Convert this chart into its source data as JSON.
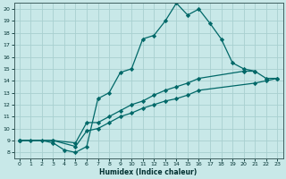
{
  "xlabel": "Humidex (Indice chaleur)",
  "bg_color": "#c8e8e8",
  "grid_color": "#a8d0d0",
  "line_color": "#006868",
  "xlim": [
    -0.5,
    23.5
  ],
  "ylim": [
    7.5,
    20.5
  ],
  "yticks": [
    8,
    9,
    10,
    11,
    12,
    13,
    14,
    15,
    16,
    17,
    18,
    19,
    20
  ],
  "xticks": [
    0,
    1,
    2,
    3,
    4,
    5,
    6,
    7,
    8,
    9,
    10,
    11,
    12,
    13,
    14,
    15,
    16,
    17,
    18,
    19,
    20,
    21,
    22,
    23
  ],
  "line1_x": [
    0,
    1,
    2,
    3,
    4,
    5,
    6,
    7,
    8,
    9,
    10,
    11,
    12,
    13,
    14,
    15,
    16,
    17,
    18,
    19,
    20,
    21
  ],
  "line1_y": [
    9,
    9,
    9,
    8.8,
    8.2,
    8.0,
    8.5,
    12.5,
    13.0,
    14.7,
    15.0,
    17.5,
    17.8,
    19.0,
    20.5,
    19.5,
    20.0,
    18.8,
    17.5,
    15.5,
    15.0,
    14.8
  ],
  "line2_x": [
    0,
    3,
    5,
    6,
    7,
    8,
    9,
    10,
    11,
    12,
    13,
    14,
    15,
    16,
    20,
    21,
    22,
    23
  ],
  "line2_y": [
    9.0,
    9.0,
    8.8,
    10.5,
    10.5,
    11.0,
    11.5,
    12.0,
    12.3,
    12.8,
    13.2,
    13.5,
    13.8,
    14.2,
    14.8,
    14.8,
    14.2,
    14.2
  ],
  "line3_x": [
    0,
    3,
    5,
    6,
    7,
    8,
    9,
    10,
    11,
    12,
    13,
    14,
    15,
    16,
    21,
    22,
    23
  ],
  "line3_y": [
    9.0,
    9.0,
    8.5,
    9.8,
    10.0,
    10.5,
    11.0,
    11.3,
    11.7,
    12.0,
    12.3,
    12.5,
    12.8,
    13.2,
    13.8,
    14.0,
    14.2
  ]
}
